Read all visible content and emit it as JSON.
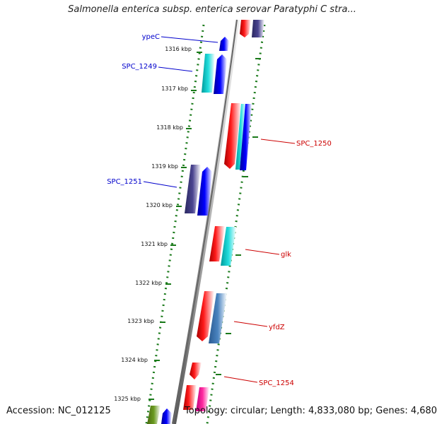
{
  "title": "Salmonella enterica subsp. enterica serovar Paratyphi C stra...",
  "footer": {
    "accession": "Accession: NC_012125",
    "topology": "Topology: circular; Length: 4,833,080 bp; Genes: 4,680"
  },
  "colors": {
    "forward_label": "#0000cc",
    "reverse_label": "#cc0000",
    "tick": "#1a7a1a",
    "backbone": "#7a7a7a"
  },
  "kbp_labels": [
    "1316 kbp",
    "1317 kbp",
    "1318 kbp",
    "1319 kbp",
    "1320 kbp",
    "1321 kbp",
    "1322 kbp",
    "1323 kbp",
    "1324 kbp",
    "1325 kbp"
  ],
  "gene_labels": [
    {
      "name": "ypeC",
      "strand": "forward"
    },
    {
      "name": "SPC_1249",
      "strand": "forward"
    },
    {
      "name": "SPC_1250",
      "strand": "reverse"
    },
    {
      "name": "SPC_1251",
      "strand": "forward"
    },
    {
      "name": "glk",
      "strand": "reverse"
    },
    {
      "name": "yfdZ",
      "strand": "reverse"
    },
    {
      "name": "SPC_1254",
      "strand": "reverse"
    }
  ]
}
